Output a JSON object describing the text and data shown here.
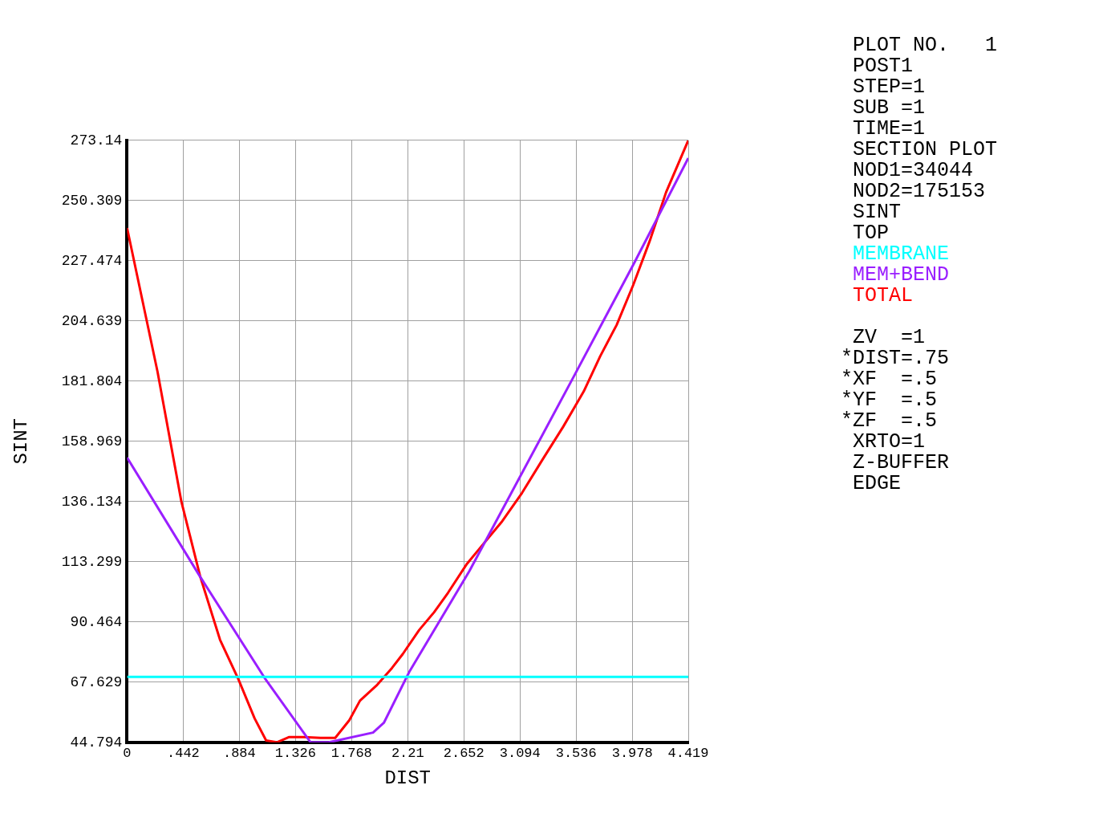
{
  "chart_data": {
    "type": "line",
    "xlabel": "DIST",
    "ylabel": "SINT",
    "xlim": [
      0,
      4.419
    ],
    "ylim": [
      44.794,
      273.14
    ],
    "xticks": [
      0,
      {
        "value": 0.442,
        "label": ".442"
      },
      {
        "value": 0.884,
        "label": ".884"
      },
      1.326,
      1.768,
      2.21,
      2.652,
      3.094,
      3.536,
      3.978,
      4.419
    ],
    "yticks": [
      44.794,
      67.629,
      90.464,
      113.299,
      136.134,
      158.969,
      181.804,
      204.639,
      227.474,
      250.309,
      273.14
    ],
    "grid": true,
    "legend": "right",
    "marker": "none",
    "line_style": "solid",
    "series": [
      {
        "name": "MEMBRANE",
        "color": "#00ffff",
        "x": [
          0,
          4.419
        ],
        "values": [
          69.6,
          69.6
        ]
      },
      {
        "name": "MEM+BEND",
        "color": "#9a1fff",
        "x": [
          0,
          0.577,
          1.082,
          1.445,
          1.588,
          1.937,
          2.022,
          2.223,
          2.696,
          3.518,
          3.992,
          4.419
        ],
        "values": [
          152.8,
          107.5,
          69.3,
          44.8,
          44.8,
          48.5,
          52.2,
          71.6,
          109.8,
          183.6,
          226.5,
          266.4
        ]
      },
      {
        "name": "TOTAL",
        "color": "#ff0000",
        "x": [
          0,
          0.24,
          0.428,
          0.577,
          0.732,
          0.875,
          1.004,
          1.095,
          1.179,
          1.277,
          1.393,
          1.523,
          1.639,
          1.75,
          1.834,
          1.963,
          2.086,
          2.171,
          2.3,
          2.417,
          2.527,
          2.676,
          2.786,
          2.948,
          3.11,
          3.272,
          3.434,
          3.596,
          3.726,
          3.855,
          3.985,
          4.115,
          4.244,
          4.419
        ],
        "values": [
          239.9,
          185.3,
          136.0,
          107.5,
          83.7,
          68.9,
          53.9,
          45.5,
          44.8,
          46.8,
          46.8,
          46.5,
          46.5,
          53.2,
          60.6,
          66.3,
          73.0,
          78.3,
          87.4,
          94.1,
          101.5,
          112.5,
          118.9,
          128.3,
          139.4,
          152.1,
          164.5,
          177.9,
          191.3,
          203.1,
          218.2,
          234.9,
          253.4,
          273.1
        ]
      }
    ],
    "annotations": [
      "PLOT NO.   1",
      "POST1",
      "STEP=1",
      "SUB =1",
      "TIME=1",
      "SECTION PLOT",
      "NOD1=34044",
      "NOD2=175153",
      "SINT",
      "TOP",
      " ZV  =1",
      "*DIST=.75",
      "*XF  =.5",
      "*YF  =.5",
      "*ZF  =.5",
      " XRTO=1",
      " Z-BUFFER",
      " EDGE"
    ]
  }
}
